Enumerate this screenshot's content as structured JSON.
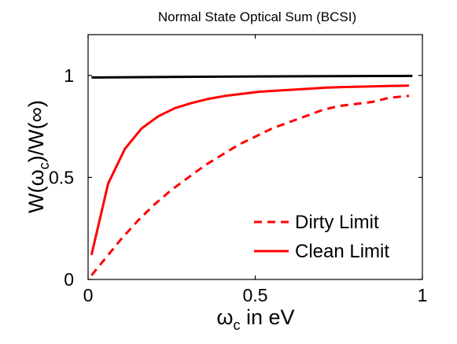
{
  "chart_data": {
    "type": "line",
    "title": "Normal State Optical Sum (BCSI)",
    "xlabel": {
      "main": "ω",
      "sub": "c",
      "rest": " in eV"
    },
    "ylabel": {
      "pre": "W(ω",
      "sub": "c",
      "post": ")/W(∞)"
    },
    "xlim": [
      0,
      1
    ],
    "ylim": [
      0,
      1.2
    ],
    "x_ticks": [
      {
        "value": 0,
        "label": "0"
      },
      {
        "value": 0.5,
        "label": "0.5"
      },
      {
        "value": 1,
        "label": "1"
      }
    ],
    "y_ticks": [
      {
        "value": 0,
        "label": "0"
      },
      {
        "value": 0.5,
        "label": "0.5"
      },
      {
        "value": 1,
        "label": "1"
      }
    ],
    "grid": false,
    "legend_position": "bottom-right",
    "series": [
      {
        "key": "reference",
        "color": "#000000",
        "dash": "solid",
        "in_legend": false,
        "points": [
          [
            0.01,
            0.99
          ],
          [
            0.2,
            0.992
          ],
          [
            0.5,
            0.995
          ],
          [
            0.8,
            0.997
          ],
          [
            0.97,
            0.998
          ]
        ]
      },
      {
        "key": "dirty",
        "name": "Dirty Limit",
        "color": "#ff0000",
        "dash": "dashed",
        "in_legend": true,
        "points": [
          [
            0.01,
            0.02
          ],
          [
            0.03,
            0.06
          ],
          [
            0.06,
            0.12
          ],
          [
            0.1,
            0.2
          ],
          [
            0.15,
            0.29
          ],
          [
            0.2,
            0.37
          ],
          [
            0.25,
            0.44
          ],
          [
            0.3,
            0.5
          ],
          [
            0.35,
            0.56
          ],
          [
            0.4,
            0.61
          ],
          [
            0.45,
            0.66
          ],
          [
            0.5,
            0.7
          ],
          [
            0.55,
            0.74
          ],
          [
            0.6,
            0.77
          ],
          [
            0.65,
            0.8
          ],
          [
            0.7,
            0.83
          ],
          [
            0.75,
            0.85
          ],
          [
            0.8,
            0.86
          ],
          [
            0.85,
            0.87
          ],
          [
            0.9,
            0.89
          ],
          [
            0.96,
            0.9
          ]
        ]
      },
      {
        "key": "clean",
        "name": "Clean Limit",
        "color": "#ff0000",
        "dash": "solid",
        "in_legend": true,
        "points": [
          [
            0.01,
            0.12
          ],
          [
            0.06,
            0.47
          ],
          [
            0.11,
            0.64
          ],
          [
            0.16,
            0.74
          ],
          [
            0.21,
            0.8
          ],
          [
            0.26,
            0.84
          ],
          [
            0.31,
            0.865
          ],
          [
            0.36,
            0.885
          ],
          [
            0.41,
            0.9
          ],
          [
            0.46,
            0.91
          ],
          [
            0.51,
            0.92
          ],
          [
            0.56,
            0.925
          ],
          [
            0.61,
            0.93
          ],
          [
            0.66,
            0.935
          ],
          [
            0.71,
            0.94
          ],
          [
            0.76,
            0.943
          ],
          [
            0.81,
            0.945
          ],
          [
            0.86,
            0.947
          ],
          [
            0.91,
            0.949
          ],
          [
            0.96,
            0.95
          ]
        ]
      }
    ]
  }
}
